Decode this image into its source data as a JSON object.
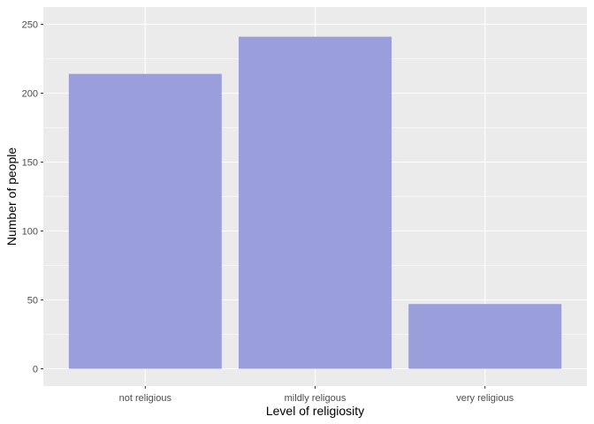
{
  "chart_data": {
    "type": "bar",
    "categories": [
      "not religious",
      "mildly religous",
      "very religious"
    ],
    "values": [
      214,
      241,
      47
    ],
    "xlabel": "Level of religiosity",
    "ylabel": "Number of people",
    "ylim": [
      0,
      250
    ],
    "yticks": [
      0,
      50,
      100,
      150,
      200,
      250
    ],
    "grid": true,
    "legend": "none",
    "colors": {
      "bar": "#9a9fdc",
      "panel": "#ebebeb",
      "grid": "#ffffff",
      "tick_text": "#4d4d4d",
      "tick_mark": "#333333"
    }
  }
}
